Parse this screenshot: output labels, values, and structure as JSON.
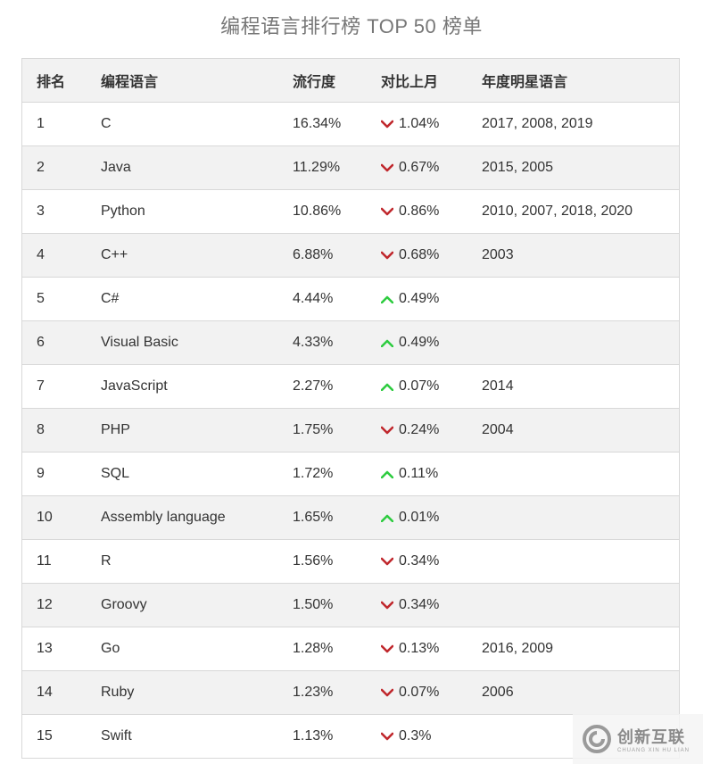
{
  "page": {
    "title": "编程语言排行榜 TOP 50 榜单"
  },
  "table": {
    "headers": [
      "排名",
      "编程语言",
      "流行度",
      "对比上月",
      "年度明星语言"
    ],
    "rows": [
      {
        "rank": "1",
        "language": "C",
        "popularity": "16.34%",
        "change": "1.04%",
        "direction": "down",
        "stars": "2017, 2008, 2019"
      },
      {
        "rank": "2",
        "language": "Java",
        "popularity": "11.29%",
        "change": "0.67%",
        "direction": "down",
        "stars": "2015, 2005"
      },
      {
        "rank": "3",
        "language": "Python",
        "popularity": "10.86%",
        "change": "0.86%",
        "direction": "down",
        "stars": "2010, 2007, 2018, 2020"
      },
      {
        "rank": "4",
        "language": "C++",
        "popularity": "6.88%",
        "change": "0.68%",
        "direction": "down",
        "stars": "2003"
      },
      {
        "rank": "5",
        "language": "C#",
        "popularity": "4.44%",
        "change": "0.49%",
        "direction": "up",
        "stars": ""
      },
      {
        "rank": "6",
        "language": "Visual Basic",
        "popularity": "4.33%",
        "change": "0.49%",
        "direction": "up",
        "stars": ""
      },
      {
        "rank": "7",
        "language": "JavaScript",
        "popularity": "2.27%",
        "change": "0.07%",
        "direction": "up",
        "stars": "2014"
      },
      {
        "rank": "8",
        "language": "PHP",
        "popularity": "1.75%",
        "change": "0.24%",
        "direction": "down",
        "stars": "2004"
      },
      {
        "rank": "9",
        "language": "SQL",
        "popularity": "1.72%",
        "change": "0.11%",
        "direction": "up",
        "stars": ""
      },
      {
        "rank": "10",
        "language": "Assembly language",
        "popularity": "1.65%",
        "change": "0.01%",
        "direction": "up",
        "stars": ""
      },
      {
        "rank": "11",
        "language": "R",
        "popularity": "1.56%",
        "change": "0.34%",
        "direction": "down",
        "stars": ""
      },
      {
        "rank": "12",
        "language": "Groovy",
        "popularity": "1.50%",
        "change": "0.34%",
        "direction": "down",
        "stars": ""
      },
      {
        "rank": "13",
        "language": "Go",
        "popularity": "1.28%",
        "change": "0.13%",
        "direction": "down",
        "stars": "2016, 2009"
      },
      {
        "rank": "14",
        "language": "Ruby",
        "popularity": "1.23%",
        "change": "0.07%",
        "direction": "down",
        "stars": "2006"
      },
      {
        "rank": "15",
        "language": "Swift",
        "popularity": "1.13%",
        "change": "0.3%",
        "direction": "down",
        "stars": ""
      }
    ]
  },
  "colors": {
    "down": "#c0282d",
    "up": "#2ecc40",
    "header_bg": "#f2f2f2",
    "border": "#d8d8d8"
  },
  "watermark": {
    "cn": "创新互联",
    "en": "CHUANG XIN HU LIAN",
    "icon": "brand-logo-icon"
  }
}
